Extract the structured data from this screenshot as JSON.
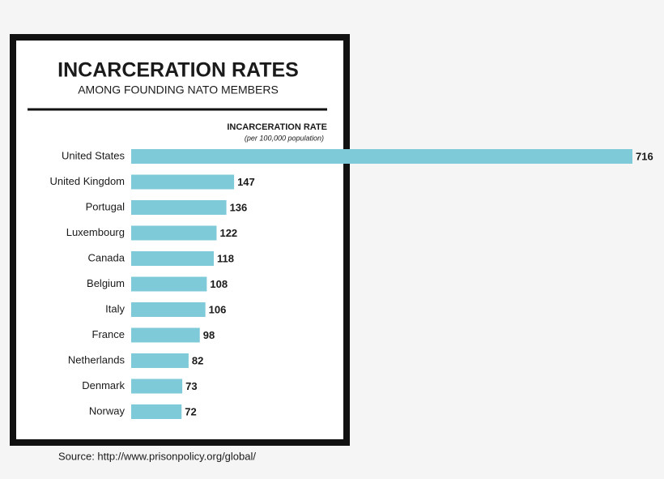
{
  "chart_data": {
    "type": "bar",
    "title": "INCARCERATION RATES",
    "subtitle": "AMONG FOUNDING NATO MEMBERS",
    "value_label": "INCARCERATION RATE",
    "value_sublabel": "(per 100,000 population)",
    "source": "Source: http://www.prisonpolicy.org/global/",
    "categories": [
      "United States",
      "United Kingdom",
      "Portugal",
      "Luxembourg",
      "Canada",
      "Belgium",
      "Italy",
      "France",
      "Netherlands",
      "Denmark",
      "Norway"
    ],
    "values": [
      716,
      147,
      136,
      122,
      118,
      108,
      106,
      98,
      82,
      73,
      72
    ],
    "color": "#7ecad8"
  }
}
